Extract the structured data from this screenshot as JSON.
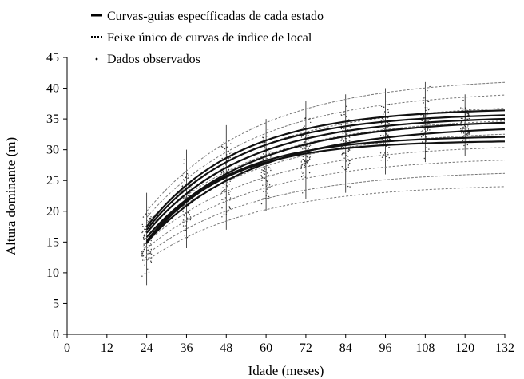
{
  "chart_data": {
    "type": "line",
    "title": "",
    "xlabel": "Idade (meses)",
    "ylabel": "Altura dominante (m)",
    "xlim": [
      0,
      132
    ],
    "ylim": [
      0,
      45
    ],
    "xticks": [
      0,
      12,
      24,
      36,
      48,
      60,
      72,
      84,
      96,
      108,
      120,
      132
    ],
    "yticks": [
      0,
      5,
      10,
      15,
      20,
      25,
      30,
      35,
      40,
      45
    ],
    "grid": false,
    "legend_placement": "top-left",
    "legend": [
      {
        "label": "Curvas-guias específicadas de cada estado",
        "style": "solid"
      },
      {
        "label": "Feixe único de curvas de índice de local",
        "style": "dotted"
      },
      {
        "label": "Dados observados",
        "style": "point"
      }
    ],
    "series": [
      {
        "style": "solid",
        "asymptote": 31.5,
        "y24": 14.8,
        "k": 0.043
      },
      {
        "style": "solid",
        "asymptote": 32.3,
        "y24": 15.2,
        "k": 0.04
      },
      {
        "style": "solid",
        "asymptote": 34.0,
        "y24": 15.0,
        "k": 0.031
      },
      {
        "style": "solid",
        "asymptote": 35.0,
        "y24": 15.8,
        "k": 0.032
      },
      {
        "style": "solid",
        "asymptote": 35.5,
        "y24": 16.5,
        "k": 0.034
      },
      {
        "style": "solid",
        "asymptote": 36.0,
        "y24": 17.0,
        "k": 0.036
      },
      {
        "style": "solid",
        "asymptote": 36.8,
        "y24": 17.5,
        "k": 0.036
      },
      {
        "style": "dotted",
        "asymptote": 24.5,
        "y24": 12.0,
        "k": 0.03
      },
      {
        "style": "dotted",
        "asymptote": 26.7,
        "y24": 13.0,
        "k": 0.03
      },
      {
        "style": "dotted",
        "asymptote": 28.9,
        "y24": 14.0,
        "k": 0.03
      },
      {
        "style": "dotted",
        "asymptote": 31.0,
        "y24": 15.0,
        "k": 0.03
      },
      {
        "style": "dotted",
        "asymptote": 33.2,
        "y24": 16.0,
        "k": 0.03
      },
      {
        "style": "dotted",
        "asymptote": 35.4,
        "y24": 17.0,
        "k": 0.03
      },
      {
        "style": "dotted",
        "asymptote": 37.5,
        "y24": 18.0,
        "k": 0.03
      },
      {
        "style": "dotted",
        "asymptote": 39.7,
        "y24": 19.0,
        "k": 0.03
      },
      {
        "style": "dotted",
        "asymptote": 41.8,
        "y24": 20.0,
        "k": 0.03
      }
    ],
    "observed_ranges": [
      {
        "x": 24,
        "ymin": 8,
        "ymax": 23
      },
      {
        "x": 36,
        "ymin": 14,
        "ymax": 30
      },
      {
        "x": 48,
        "ymin": 17,
        "ymax": 34
      },
      {
        "x": 60,
        "ymin": 20,
        "ymax": 35
      },
      {
        "x": 72,
        "ymin": 22,
        "ymax": 38
      },
      {
        "x": 84,
        "ymin": 23,
        "ymax": 39
      },
      {
        "x": 96,
        "ymin": 26,
        "ymax": 40
      },
      {
        "x": 108,
        "ymin": 28,
        "ymax": 41
      },
      {
        "x": 120,
        "ymin": 29,
        "ymax": 39
      }
    ]
  }
}
